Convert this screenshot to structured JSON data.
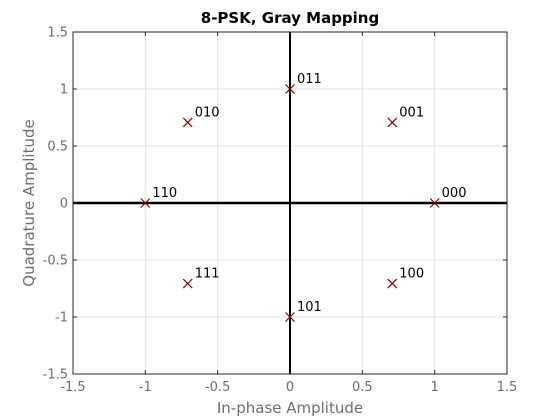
{
  "chart_data": {
    "type": "scatter",
    "title": "8-PSK, Gray Mapping",
    "xlabel": "In-phase Amplitude",
    "ylabel": "Quadrature Amplitude",
    "xlim": [
      -1.5,
      1.5
    ],
    "ylim": [
      -1.5,
      1.5
    ],
    "xticks": [
      -1.5,
      -1,
      -0.5,
      0,
      0.5,
      1,
      1.5
    ],
    "yticks": [
      -1.5,
      -1,
      -0.5,
      0,
      0.5,
      1,
      1.5
    ],
    "xtick_labels": [
      "-1.5",
      "-1",
      "-0.5",
      "0",
      "0.5",
      "1",
      "1.5"
    ],
    "ytick_labels": [
      "-1.5",
      "-1",
      "-0.5",
      "0",
      "0.5",
      "1",
      "1.5"
    ],
    "grid": true,
    "marker": "x",
    "marker_color": "#8b0000",
    "axis_line_color": "#000000",
    "points": [
      {
        "x": 1,
        "y": 0,
        "label": "000"
      },
      {
        "x": 0.7071,
        "y": 0.7071,
        "label": "001"
      },
      {
        "x": 0,
        "y": 1,
        "label": "011"
      },
      {
        "x": -0.7071,
        "y": 0.7071,
        "label": "010"
      },
      {
        "x": -1,
        "y": 0,
        "label": "110"
      },
      {
        "x": -0.7071,
        "y": -0.7071,
        "label": "111"
      },
      {
        "x": 0,
        "y": -1,
        "label": "101"
      },
      {
        "x": 0.7071,
        "y": -0.7071,
        "label": "100"
      }
    ]
  }
}
